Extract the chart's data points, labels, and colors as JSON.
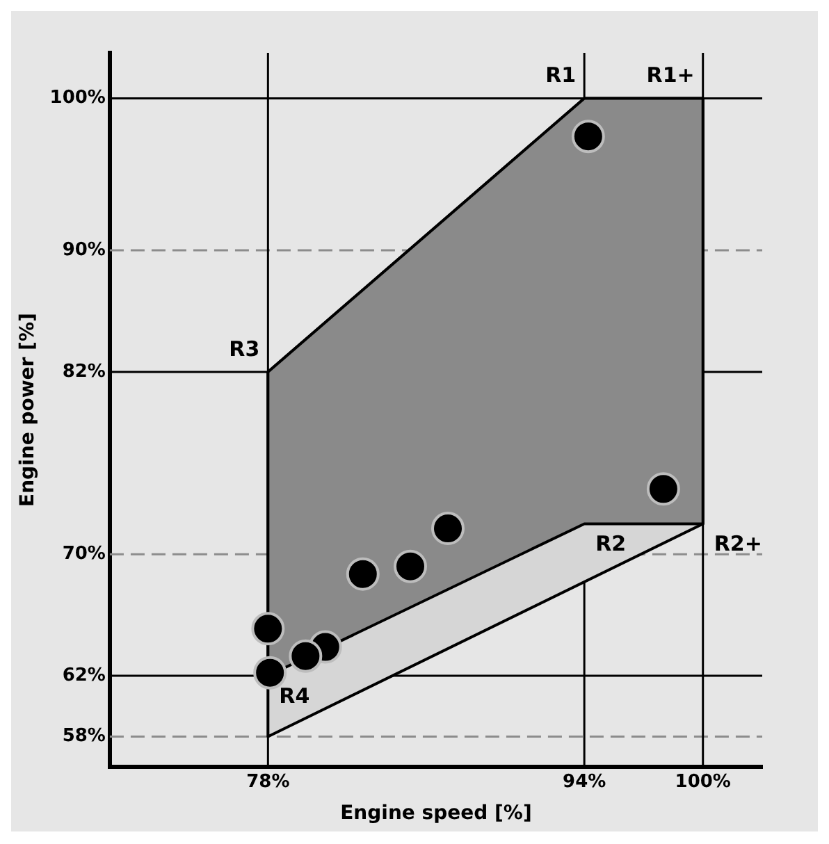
{
  "chart_data": {
    "type": "scatter",
    "xlabel": "Engine speed [%]",
    "ylabel": "Engine power [%]",
    "xlim": [
      70,
      103
    ],
    "ylim": [
      56,
      103
    ],
    "xticks": [
      {
        "value": 78,
        "label": "78%"
      },
      {
        "value": 94,
        "label": "94%"
      },
      {
        "value": 100,
        "label": "100%"
      }
    ],
    "yticks": [
      {
        "value": 58,
        "label": "58%"
      },
      {
        "value": 62,
        "label": "62%"
      },
      {
        "value": 70,
        "label": "70%"
      },
      {
        "value": 82,
        "label": "82%"
      },
      {
        "value": 90,
        "label": "90%"
      },
      {
        "value": 100,
        "label": "100%"
      }
    ],
    "grid": false,
    "legend": false,
    "series": [
      {
        "type": "area",
        "color": "#d6d6d6",
        "x": [
          78,
          94,
          100,
          100,
          78,
          78
        ],
        "values": [
          82,
          100,
          100,
          72,
          58,
          82
        ]
      },
      {
        "type": "area",
        "color": "#8a8a8a",
        "x": [
          78,
          94,
          100,
          100,
          94,
          78,
          78
        ],
        "values": [
          82,
          100,
          100,
          72,
          72,
          62,
          82
        ]
      },
      {
        "color": "#000000",
        "marker": "circle",
        "x": [
          94.2,
          98.0,
          87.1,
          85.2,
          82.8,
          78.0,
          80.9,
          79.9,
          78.1
        ],
        "values": [
          97.5,
          74.3,
          71.7,
          69.2,
          68.7,
          65.1,
          63.9,
          63.3,
          62.2
        ]
      }
    ],
    "ref_lines": [
      {
        "axis": "y",
        "value": 100,
        "line_style": "solid"
      },
      {
        "axis": "y",
        "value": 90,
        "line_style": "dashed",
        "color": "#8c8c8c"
      },
      {
        "axis": "y",
        "value": 82,
        "line_style": "solid"
      },
      {
        "axis": "y",
        "value": 70,
        "line_style": "dashed",
        "color": "#8c8c8c"
      },
      {
        "axis": "y",
        "value": 62,
        "line_style": "solid"
      },
      {
        "axis": "y",
        "value": 58,
        "line_style": "dashed",
        "color": "#8c8c8c"
      },
      {
        "axis": "x",
        "value": 78,
        "line_style": "solid"
      },
      {
        "axis": "x",
        "value": 94,
        "line_style": "solid"
      },
      {
        "axis": "x",
        "value": 100,
        "line_style": "solid"
      }
    ],
    "annotations": [
      {
        "text": "R1",
        "x": 94,
        "y": 100
      },
      {
        "text": "R1+",
        "x": 100,
        "y": 100
      },
      {
        "text": "R2",
        "x": 94,
        "y": 72
      },
      {
        "text": "R2+",
        "x": 100,
        "y": 72
      },
      {
        "text": "R3",
        "x": 78,
        "y": 82
      },
      {
        "text": "R4",
        "x": 78,
        "y": 62
      }
    ]
  }
}
